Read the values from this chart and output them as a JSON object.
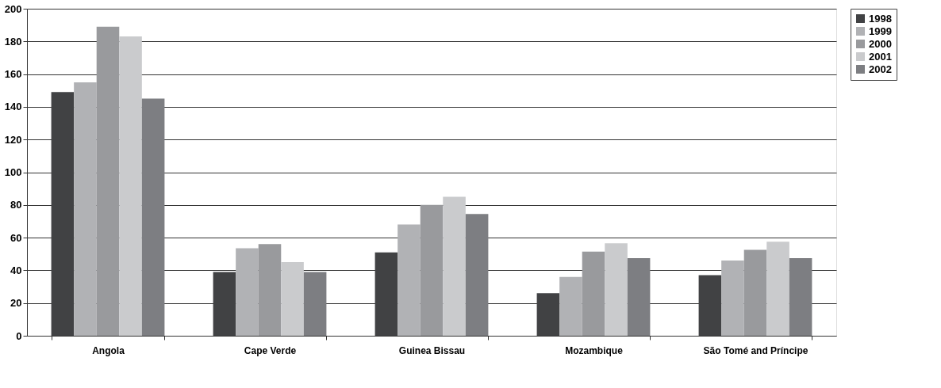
{
  "chart_data": {
    "type": "bar",
    "categories": [
      "Angola",
      "Cape Verde",
      "Guinea Bissau",
      "Mozambique",
      "São Tomé and Príncipe"
    ],
    "series": [
      {
        "name": "1998",
        "color": "#414244",
        "values": [
          149,
          39,
          51,
          26,
          37
        ]
      },
      {
        "name": "1999",
        "color": "#b1b2b5",
        "values": [
          155,
          53.5,
          68,
          36,
          46
        ]
      },
      {
        "name": "2000",
        "color": "#999a9d",
        "values": [
          189,
          56,
          80,
          51.5,
          52.5
        ]
      },
      {
        "name": "2001",
        "color": "#cacbcd",
        "values": [
          183,
          45,
          85,
          56.5,
          57.5
        ]
      },
      {
        "name": "2002",
        "color": "#7d7e82",
        "values": [
          145,
          39,
          74.5,
          47.5,
          47.5
        ]
      }
    ],
    "ylim": [
      0,
      200
    ],
    "yticks": [
      0,
      20,
      40,
      60,
      80,
      100,
      120,
      140,
      160,
      180,
      200
    ],
    "grid": "y",
    "legend": "right"
  }
}
